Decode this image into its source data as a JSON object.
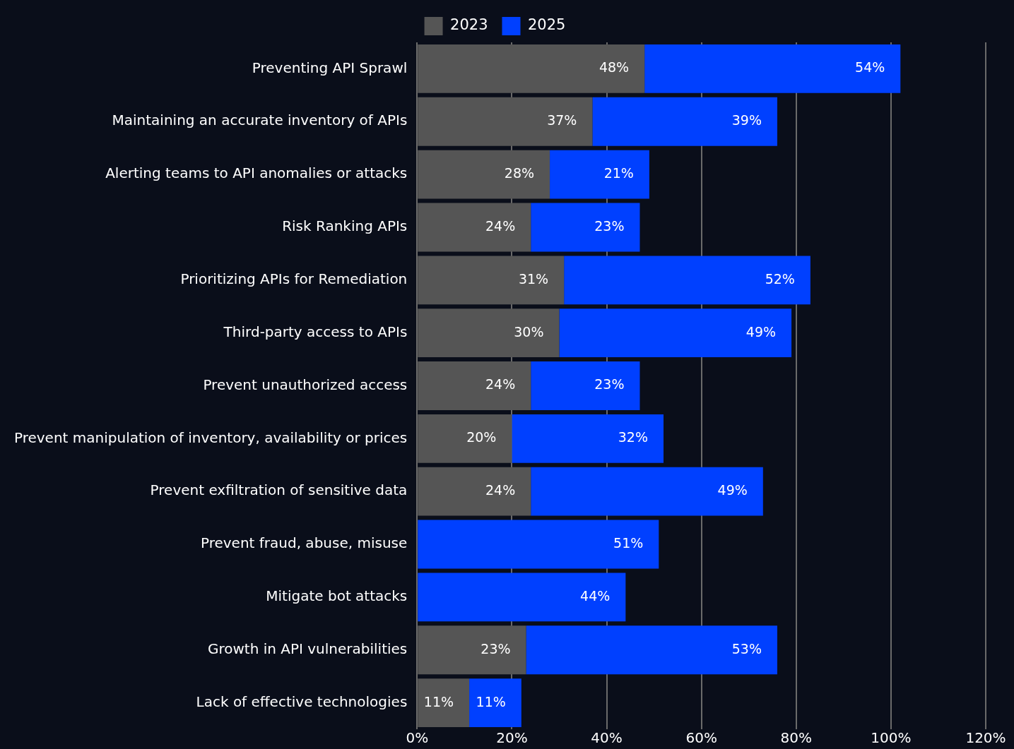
{
  "chart_data": {
    "type": "bar",
    "orientation": "horizontal",
    "stacked": true,
    "categories": [
      "Preventing API Sprawl",
      "Maintaining an accurate inventory of APIs",
      "Alerting teams to API anomalies or attacks",
      "Risk Ranking APIs",
      "Prioritizing APIs for Remediation",
      "Third-party access to APIs",
      "Prevent unauthorized access",
      "Prevent manipulation of inventory, availability or prices",
      "Prevent exfiltration of sensitive data",
      "Prevent fraud, abuse, misuse",
      "Mitigate bot attacks",
      "Growth in API vulnerabilities",
      "Lack of effective technologies"
    ],
    "series": [
      {
        "name": "2023",
        "color": "#555555",
        "values": [
          48,
          37,
          28,
          24,
          31,
          30,
          24,
          20,
          24,
          null,
          null,
          23,
          11
        ],
        "value_labels": [
          "48%",
          "37%",
          "28%",
          "24%",
          "31%",
          "30%",
          "24%",
          "20%",
          "24%",
          null,
          null,
          "23%",
          "11%"
        ]
      },
      {
        "name": "2025",
        "color": "#0040ff",
        "values": [
          54,
          39,
          21,
          23,
          52,
          49,
          23,
          32,
          49,
          51,
          44,
          53,
          11
        ],
        "value_labels": [
          "54%",
          "39%",
          "21%",
          "23%",
          "52%",
          "49%",
          "23%",
          "32%",
          "49%",
          "51%",
          "44%",
          "53%",
          "11%"
        ]
      }
    ],
    "xlim": [
      0,
      120
    ],
    "xticks": [
      {
        "value": 0,
        "label": "0%"
      },
      {
        "value": 20,
        "label": "20%"
      },
      {
        "value": 40,
        "label": "40%"
      },
      {
        "value": 60,
        "label": "60%"
      },
      {
        "value": 80,
        "label": "80%"
      },
      {
        "value": 100,
        "label": "100%"
      },
      {
        "value": 120,
        "label": "120%"
      }
    ],
    "grid": "x",
    "legend": "top"
  }
}
